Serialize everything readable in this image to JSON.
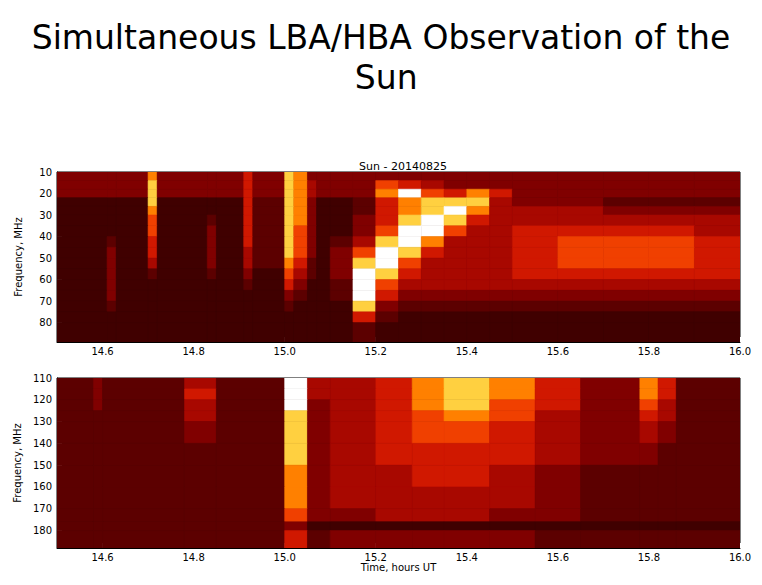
{
  "title": "Simultaneous LBA/HBA Observation of the Sun",
  "chart_data": [
    {
      "type": "heatmap",
      "title": "Sun - 20140825",
      "ylabel": "Frequency, MHz",
      "xlim": [
        14.5,
        16.0
      ],
      "xticks": [
        14.6,
        14.8,
        {
          "value": 15,
          "label": "15.0"
        },
        15.2,
        15.4,
        15.6,
        15.8,
        {
          "value": 16,
          "label": "16.0"
        }
      ],
      "ylim": [
        10,
        89
      ],
      "yticks": [
        10,
        20,
        30,
        40,
        50,
        60,
        70,
        80
      ],
      "zlim": [
        0,
        9
      ],
      "x_edges": [
        14.5,
        14.61,
        14.63,
        14.7,
        14.72,
        14.83,
        14.85,
        14.91,
        14.93,
        15.0,
        15.02,
        15.05,
        15.07,
        15.1,
        15.15,
        15.2,
        15.25,
        15.3,
        15.35,
        15.4,
        15.45,
        15.5,
        15.6,
        15.7,
        15.8,
        15.9,
        16.0
      ],
      "y_edges": [
        10,
        14,
        18,
        22,
        26,
        30,
        35,
        40,
        45,
        50,
        55,
        60,
        65,
        70,
        75,
        80,
        89
      ],
      "cells": [
        [
          3,
          3,
          3,
          7,
          3,
          3,
          3,
          5,
          3,
          8,
          7,
          3,
          3,
          3,
          3,
          3,
          3,
          3,
          3,
          3,
          3,
          3,
          3,
          3,
          3,
          3
        ],
        [
          3,
          3,
          3,
          8,
          3,
          3,
          3,
          5,
          3,
          8,
          7,
          4,
          3,
          3,
          3,
          6,
          5,
          4,
          3,
          3,
          3,
          3,
          3,
          3,
          3,
          3
        ],
        [
          3,
          3,
          3,
          8,
          3,
          3,
          3,
          5,
          3,
          8,
          7,
          4,
          3,
          3,
          3,
          7,
          9,
          6,
          5,
          7,
          5,
          3,
          3,
          3,
          3,
          3
        ],
        [
          1,
          1,
          1,
          8,
          1,
          1,
          1,
          5,
          2,
          8,
          7,
          3,
          1,
          1,
          2,
          5,
          7,
          8,
          8,
          8,
          4,
          3,
          3,
          2,
          2,
          2
        ],
        [
          1,
          1,
          1,
          7,
          1,
          1,
          1,
          5,
          2,
          8,
          7,
          3,
          1,
          1,
          2,
          5,
          7,
          8,
          9,
          7,
          4,
          4,
          4,
          3,
          3,
          3
        ],
        [
          1,
          1,
          1,
          6,
          1,
          2,
          1,
          5,
          2,
          8,
          7,
          3,
          1,
          1,
          3,
          5,
          8,
          9,
          8,
          5,
          4,
          4,
          4,
          4,
          4,
          4
        ],
        [
          1,
          1,
          1,
          6,
          1,
          3,
          1,
          5,
          2,
          8,
          6,
          3,
          1,
          1,
          3,
          6,
          9,
          9,
          6,
          4,
          4,
          5,
          5,
          5,
          5,
          4
        ],
        [
          1,
          2,
          1,
          5,
          1,
          3,
          1,
          5,
          2,
          8,
          6,
          3,
          1,
          2,
          4,
          8,
          9,
          7,
          4,
          4,
          4,
          5,
          6,
          6,
          6,
          5
        ],
        [
          1,
          3,
          1,
          5,
          1,
          3,
          1,
          4,
          2,
          8,
          6,
          3,
          1,
          3,
          6,
          9,
          8,
          5,
          4,
          4,
          4,
          5,
          6,
          6,
          6,
          5
        ],
        [
          1,
          3,
          1,
          4,
          1,
          3,
          1,
          4,
          2,
          7,
          5,
          2,
          1,
          3,
          8,
          9,
          6,
          4,
          4,
          4,
          4,
          5,
          6,
          6,
          6,
          5
        ],
        [
          1,
          3,
          1,
          2,
          1,
          2,
          1,
          3,
          1,
          6,
          4,
          2,
          1,
          3,
          9,
          8,
          5,
          4,
          4,
          4,
          4,
          5,
          5,
          5,
          5,
          5
        ],
        [
          1,
          3,
          1,
          1,
          1,
          1,
          1,
          2,
          1,
          5,
          3,
          1,
          1,
          2,
          9,
          6,
          4,
          4,
          4,
          4,
          4,
          4,
          4,
          4,
          4,
          4
        ],
        [
          1,
          3,
          1,
          1,
          1,
          1,
          1,
          1,
          1,
          3,
          2,
          1,
          1,
          2,
          9,
          5,
          3,
          3,
          3,
          3,
          3,
          3,
          3,
          3,
          3,
          3
        ],
        [
          1,
          2,
          1,
          1,
          1,
          1,
          1,
          1,
          1,
          2,
          1,
          1,
          1,
          1,
          8,
          3,
          2,
          2,
          2,
          2,
          2,
          2,
          2,
          2,
          2,
          2
        ],
        [
          1,
          1,
          1,
          1,
          1,
          1,
          1,
          1,
          1,
          1,
          1,
          1,
          1,
          1,
          5,
          2,
          1,
          1,
          1,
          1,
          1,
          1,
          1,
          1,
          1,
          1
        ],
        [
          1,
          1,
          1,
          1,
          1,
          1,
          1,
          1,
          1,
          1,
          1,
          1,
          1,
          1,
          2,
          1,
          1,
          1,
          1,
          1,
          1,
          1,
          1,
          1,
          1,
          1
        ]
      ]
    },
    {
      "type": "heatmap",
      "ylabel": "Frequency, MHz",
      "xlabel": "Time, hours UT",
      "xlim": [
        14.5,
        16.0
      ],
      "xticks": [
        14.6,
        14.8,
        {
          "value": 15,
          "label": "15.0"
        },
        15.2,
        15.4,
        15.6,
        15.8,
        {
          "value": 16,
          "label": "16.0"
        }
      ],
      "ylim": [
        110,
        188
      ],
      "yticks": [
        110,
        120,
        130,
        140,
        150,
        160,
        170,
        180
      ],
      "zlim": [
        0,
        9
      ],
      "x_edges": [
        14.5,
        14.58,
        14.6,
        14.78,
        14.85,
        15.0,
        15.05,
        15.1,
        15.2,
        15.28,
        15.35,
        15.45,
        15.55,
        15.65,
        15.78,
        15.82,
        15.86,
        16.0
      ],
      "y_edges": [
        110,
        115,
        120,
        125,
        130,
        140,
        150,
        160,
        170,
        176,
        180,
        188
      ],
      "cells": [
        [
          2,
          3,
          2,
          4,
          2,
          9,
          4,
          4,
          5,
          7,
          8,
          7,
          5,
          3,
          7,
          5,
          2
        ],
        [
          2,
          3,
          2,
          5,
          2,
          9,
          4,
          4,
          5,
          7,
          8,
          7,
          5,
          3,
          7,
          5,
          2
        ],
        [
          2,
          3,
          2,
          4,
          2,
          9,
          3,
          4,
          5,
          7,
          8,
          6,
          5,
          3,
          6,
          4,
          2
        ],
        [
          2,
          2,
          2,
          4,
          2,
          8,
          3,
          4,
          5,
          6,
          7,
          6,
          4,
          3,
          5,
          4,
          2
        ],
        [
          2,
          2,
          2,
          3,
          2,
          8,
          3,
          4,
          5,
          6,
          6,
          5,
          4,
          3,
          4,
          3,
          2
        ],
        [
          2,
          2,
          2,
          2,
          2,
          8,
          3,
          4,
          5,
          5,
          5,
          5,
          4,
          3,
          3,
          2,
          2
        ],
        [
          2,
          2,
          2,
          2,
          2,
          7,
          3,
          4,
          4,
          5,
          5,
          4,
          3,
          2,
          2,
          2,
          2
        ],
        [
          2,
          2,
          2,
          2,
          2,
          7,
          3,
          4,
          4,
          4,
          4,
          4,
          3,
          2,
          2,
          2,
          2
        ],
        [
          2,
          2,
          2,
          2,
          2,
          6,
          3,
          3,
          4,
          4,
          4,
          3,
          3,
          2,
          2,
          2,
          2
        ],
        [
          2,
          2,
          2,
          2,
          2,
          3,
          1,
          1,
          1,
          1,
          1,
          1,
          1,
          1,
          1,
          1,
          1
        ],
        [
          2,
          2,
          2,
          2,
          2,
          5,
          2,
          3,
          3,
          3,
          3,
          3,
          2,
          2,
          2,
          2,
          2
        ]
      ]
    }
  ]
}
